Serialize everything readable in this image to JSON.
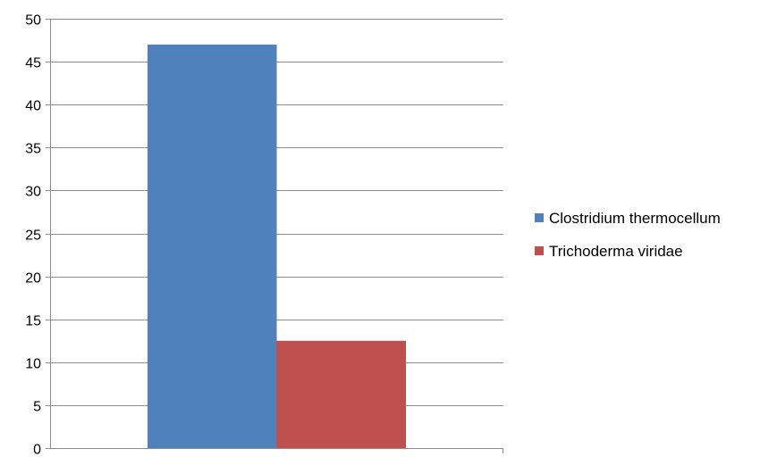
{
  "chart_data": {
    "type": "bar",
    "categories": [
      ""
    ],
    "series": [
      {
        "name": "Clostridium thermocellum",
        "values": [
          47
        ],
        "color": "#4F81BD"
      },
      {
        "name": "Trichoderma viridae",
        "values": [
          12.5
        ],
        "color": "#C0504D"
      }
    ],
    "title": "",
    "xlabel": "",
    "ylabel": "",
    "ylim": [
      0,
      50
    ],
    "yticks": [
      0,
      5,
      10,
      15,
      20,
      25,
      30,
      35,
      40,
      45,
      50
    ],
    "grid": true,
    "legend_position": "right"
  }
}
